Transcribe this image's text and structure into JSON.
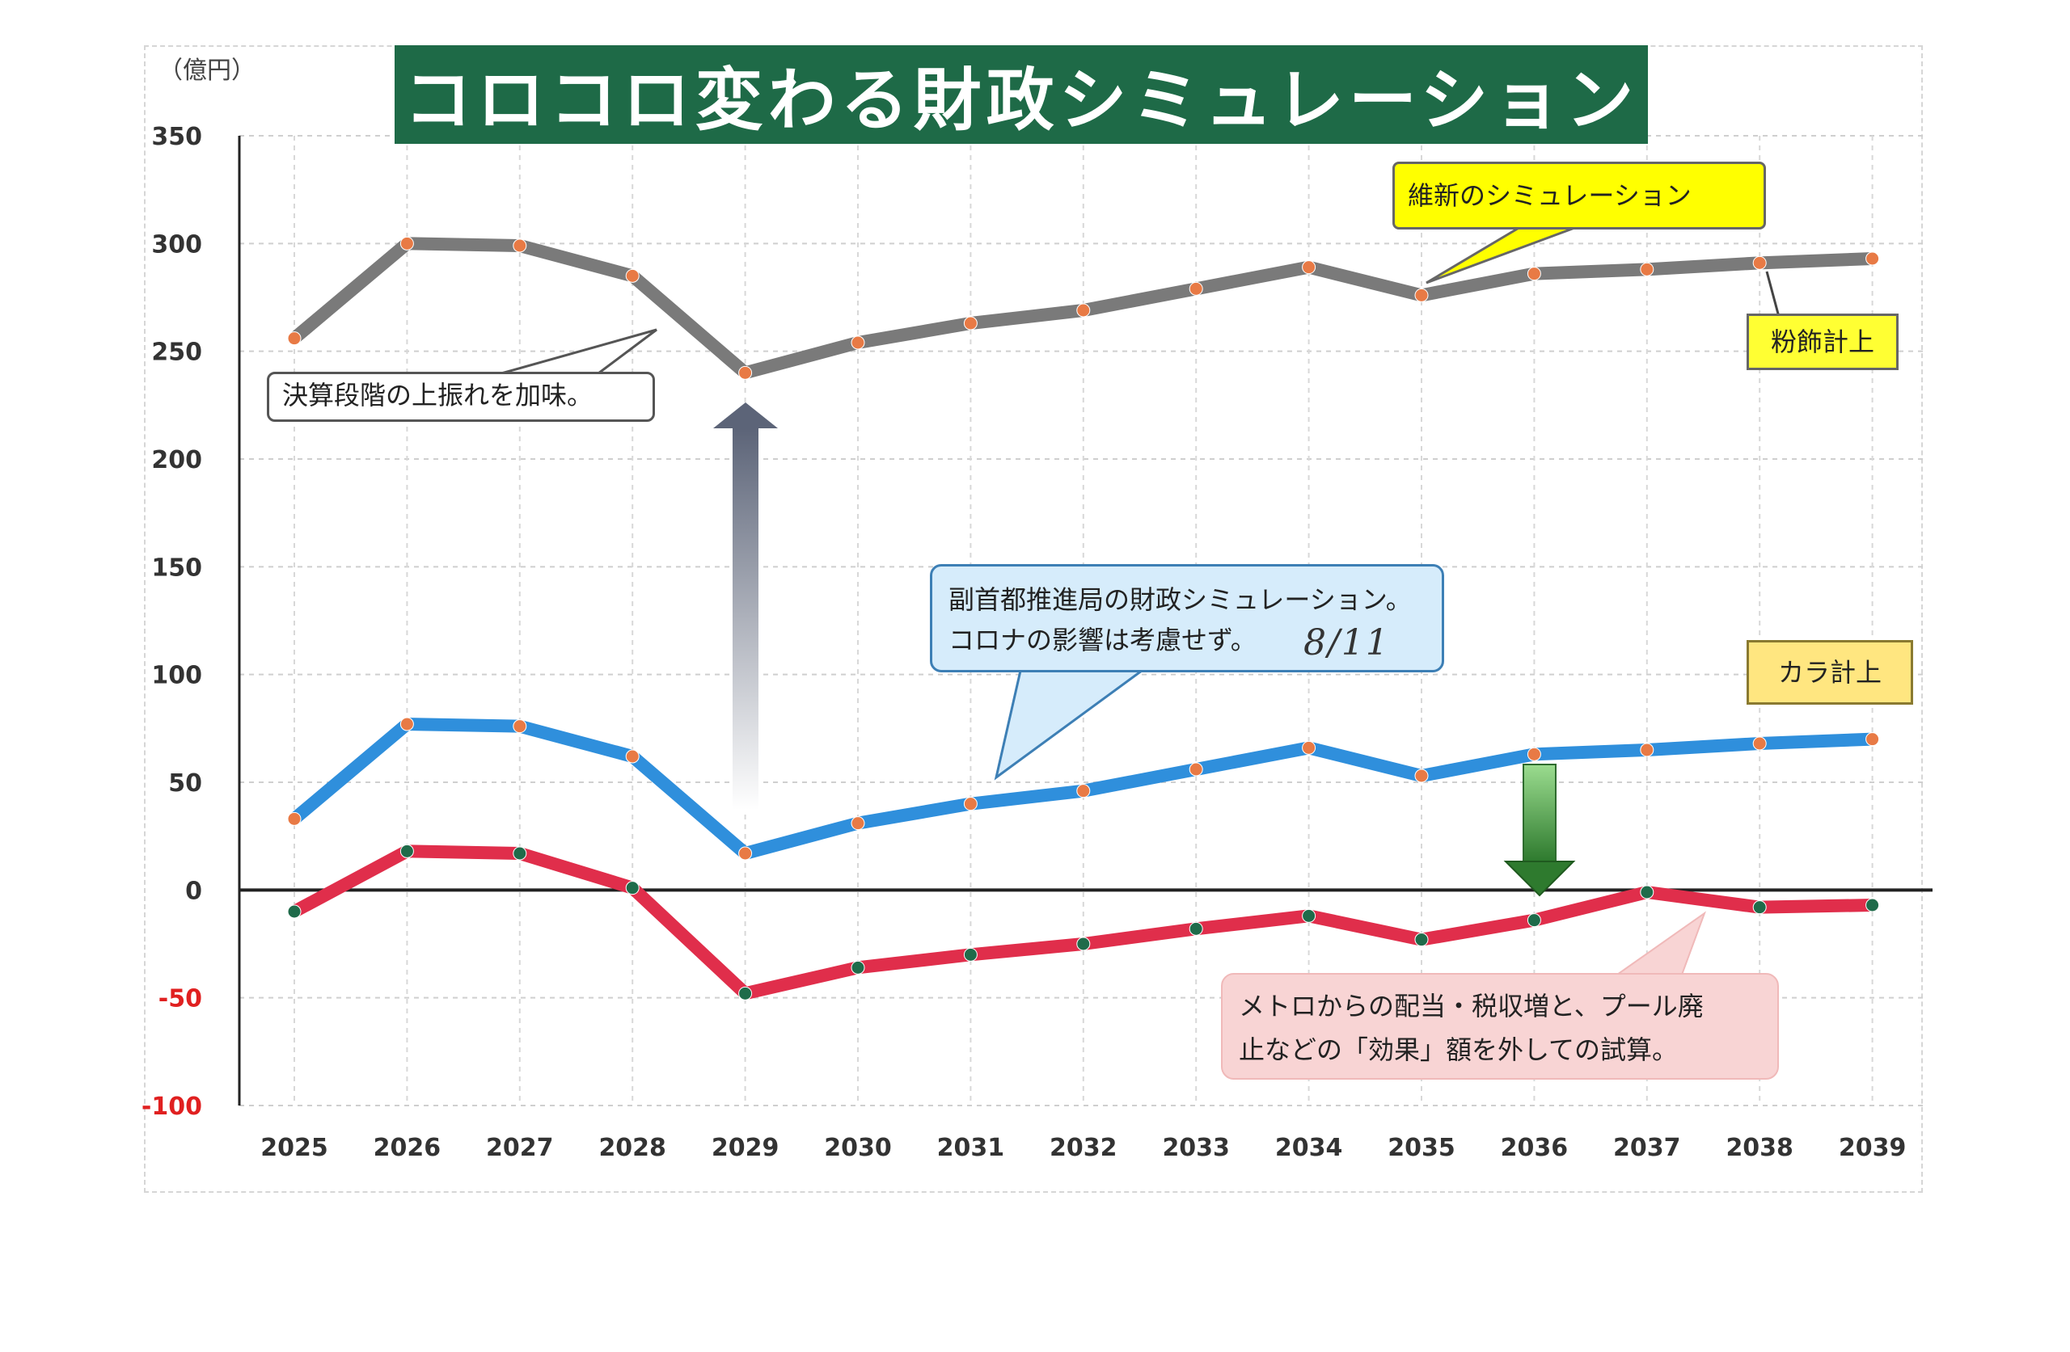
{
  "title": "コロコロ変わる財政シミュレーション",
  "unit_label": "（億円）",
  "callouts": {
    "settlement": "決算段階の上振れを加味。",
    "ishin": "維新のシミュレーション",
    "funshoku": "粉飾計上",
    "fukushuto_line1": "副首都推進局の財政シミュレーション。",
    "fukushuto_line2": "コロナの影響は考慮せず。",
    "kara": "カラ計上",
    "metro_line1": "メトロからの配当・税収増と、プール廃",
    "metro_line2": "止などの「効果」額を外しての試算。"
  },
  "handwritten_note": "8/11",
  "colors": {
    "title_bg": "#1e6a47",
    "gray_series": "#7a7a7a",
    "blue_series": "#2f8fdc",
    "red_series": "#e02e4b",
    "orange_marker": "#e87a45",
    "green_marker": "#1f6b4a",
    "negative_tick": "#e02020",
    "up_arrow": "#5c6478",
    "down_arrow": "#3f8f3f"
  },
  "chart_data": {
    "type": "line",
    "x": [
      "2025",
      "2026",
      "2027",
      "2028",
      "2029",
      "2030",
      "2031",
      "2032",
      "2033",
      "2034",
      "2035",
      "2036",
      "2037",
      "2038",
      "2039"
    ],
    "ylim": [
      -100,
      350
    ],
    "yticks": [
      350,
      300,
      250,
      200,
      150,
      100,
      50,
      0,
      -50,
      -100
    ],
    "grid": true,
    "series": [
      {
        "values": [
          256,
          300,
          299,
          285,
          240,
          254,
          263,
          269,
          279,
          289,
          276,
          286,
          288,
          291,
          293
        ]
      },
      {
        "values": [
          33,
          77,
          76,
          62,
          17,
          31,
          40,
          46,
          56,
          66,
          53,
          63,
          65,
          68,
          70
        ]
      },
      {
        "values": [
          -10,
          18,
          17,
          1,
          -48,
          -36,
          -30,
          -25,
          -18,
          -12,
          -23,
          -14,
          -1,
          -8,
          -7
        ]
      }
    ]
  }
}
